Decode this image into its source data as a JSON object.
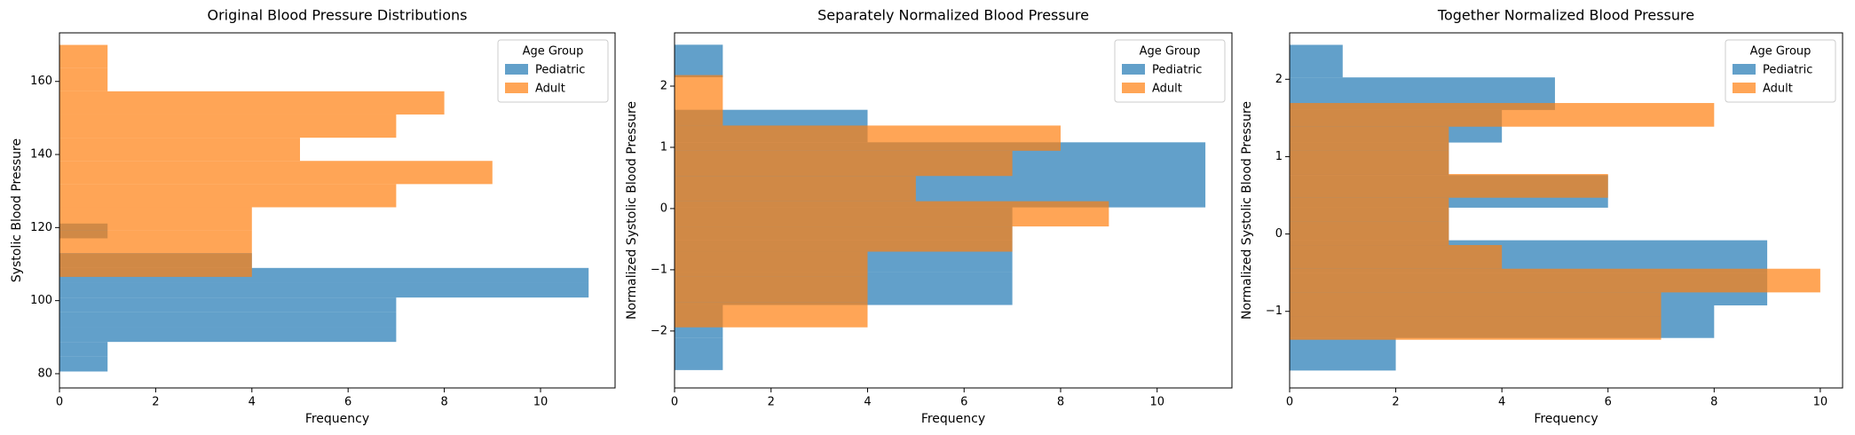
{
  "chart_data": [
    {
      "type": "histogram",
      "orientation": "horizontal",
      "title": "Original Blood Pressure Distributions",
      "xlabel": "Frequency",
      "ylabel": "Systolic Blood Pressure",
      "alpha": 0.7,
      "legend": {
        "title": "Age Group",
        "loc": "upper right"
      },
      "series": [
        {
          "name": "Pediatric",
          "color": "#1f77b4",
          "bins": [
            80.6,
            84.65,
            88.7,
            92.75,
            96.8,
            100.85,
            104.9,
            108.95,
            113.0,
            117.05,
            121.1
          ],
          "values": [
            1,
            1,
            7,
            7,
            7,
            11,
            11,
            4,
            0,
            1
          ]
        },
        {
          "name": "Adult",
          "color": "#ff7f0e",
          "bins": [
            106.5,
            112.85,
            119.2,
            125.55,
            131.9,
            138.25,
            144.6,
            150.95,
            157.3,
            163.65,
            170.0
          ],
          "values": [
            4,
            4,
            4,
            7,
            9,
            5,
            7,
            8,
            1,
            1
          ]
        }
      ],
      "xlim": [
        0,
        11.55
      ],
      "ylim": [
        76.1,
        173.3
      ],
      "xticks": [
        0,
        2,
        4,
        6,
        8,
        10
      ],
      "yticks": [
        80,
        100,
        120,
        140,
        160
      ]
    },
    {
      "type": "histogram",
      "orientation": "horizontal",
      "title": "Separately Normalized Blood Pressure",
      "xlabel": "Frequency",
      "ylabel": "Normalized Systolic Blood Pressure",
      "alpha": 0.7,
      "legend": {
        "title": "Age Group",
        "loc": "upper right"
      },
      "series": [
        {
          "name": "Pediatric",
          "color": "#1f77b4",
          "bins": [
            -2.638,
            -2.107,
            -1.575,
            -1.044,
            -0.512,
            0.019,
            0.55,
            1.082,
            1.613,
            2.145,
            2.676
          ],
          "values": [
            1,
            1,
            7,
            7,
            7,
            11,
            11,
            4,
            0,
            1
          ]
        },
        {
          "name": "Adult",
          "color": "#ff7f0e",
          "bins": [
            -1.94,
            -1.528,
            -1.116,
            -0.704,
            -0.292,
            0.12,
            0.532,
            0.944,
            1.356,
            1.768,
            2.18
          ],
          "values": [
            4,
            4,
            4,
            7,
            9,
            5,
            7,
            8,
            1,
            1
          ]
        }
      ],
      "xlim": [
        0,
        11.55
      ],
      "ylim": [
        -2.93,
        2.87
      ],
      "xticks": [
        0,
        2,
        4,
        6,
        8,
        10
      ],
      "yticks": [
        {
          "value": -2,
          "label": "−2"
        },
        {
          "value": -1,
          "label": "−1"
        },
        0,
        1,
        2
      ]
    },
    {
      "type": "histogram",
      "orientation": "horizontal",
      "title": "Together Normalized Blood Pressure",
      "xlabel": "Frequency",
      "ylabel": "Normalized Systolic Blood Pressure",
      "alpha": 0.7,
      "legend": {
        "title": "Age Group",
        "loc": "upper right"
      },
      "series": [
        {
          "name": "Pediatric",
          "color": "#1f77b4",
          "bins": [
            -1.765,
            -1.344,
            -0.923,
            -0.502,
            -0.081,
            0.34,
            0.761,
            1.182,
            1.603,
            2.024,
            2.445
          ],
          "values": [
            2,
            8,
            9,
            9,
            3,
            6,
            3,
            4,
            5,
            1
          ]
        },
        {
          "name": "Adult",
          "color": "#ff7f0e",
          "bins": [
            -1.367,
            -1.061,
            -0.755,
            -0.449,
            -0.143,
            0.163,
            0.469,
            0.775,
            1.081,
            1.387,
            1.693
          ],
          "values": [
            7,
            7,
            10,
            4,
            3,
            3,
            6,
            3,
            3,
            8
          ]
        }
      ],
      "xlim": [
        0,
        10.42
      ],
      "ylim": [
        -1.99,
        2.6
      ],
      "xticks": [
        0,
        2,
        4,
        6,
        8,
        10
      ],
      "yticks": [
        {
          "value": -1,
          "label": "−1"
        },
        0,
        1,
        2
      ]
    }
  ]
}
